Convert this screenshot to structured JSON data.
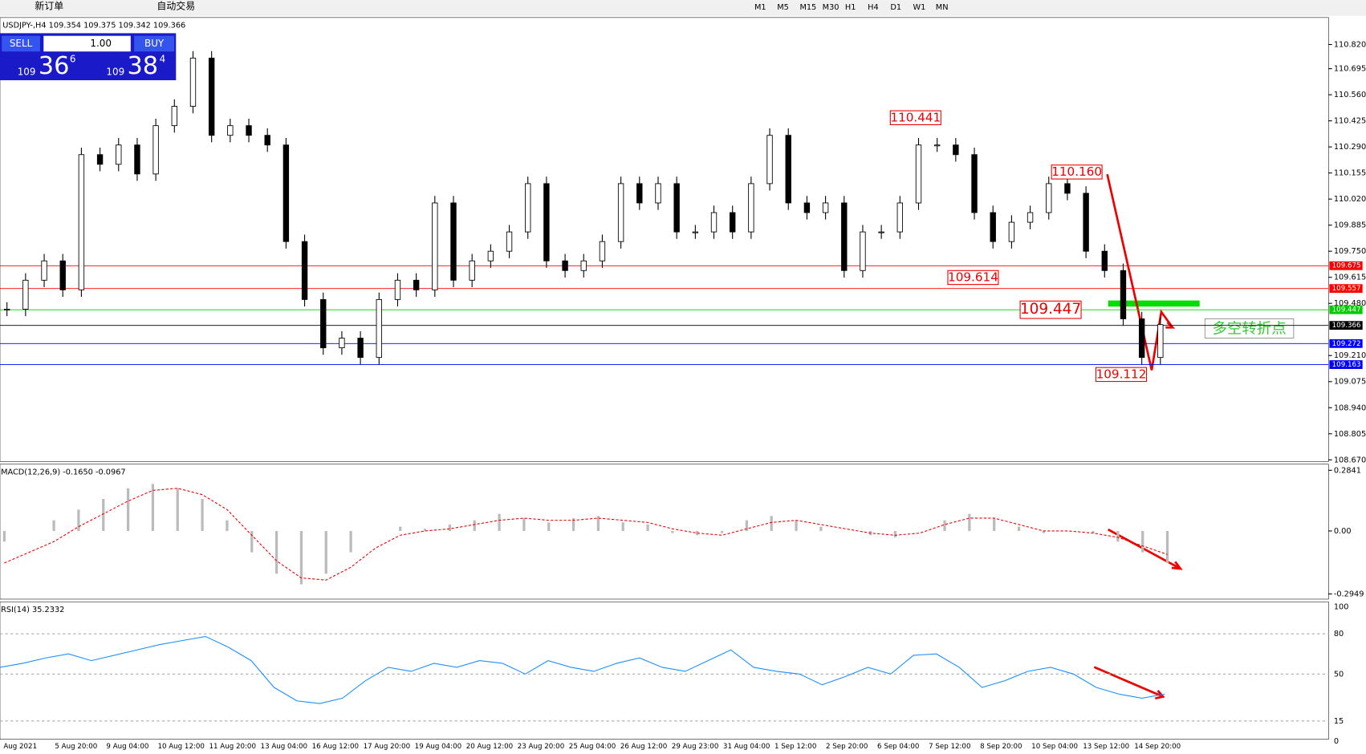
{
  "toolbar": {
    "buttons": [
      "新订单",
      "自动交易"
    ],
    "timeframes": [
      "M1",
      "M5",
      "M15",
      "M30",
      "H1",
      "H4",
      "D1",
      "W1",
      "MN"
    ]
  },
  "trade_panel": {
    "sell": "SELL",
    "buy": "BUY",
    "lot": "1.00",
    "bid": {
      "big": "109",
      "main": "36",
      "small": "6"
    },
    "ask": {
      "big": "109",
      "main": "38",
      "small": "4"
    }
  },
  "price_chart": {
    "header": "USDJPY-,H4  109.354 109.375 109.342 109.366",
    "ylim": [
      108.67,
      110.865
    ],
    "yticks": [
      {
        "value": 110.82,
        "label": "110.820"
      },
      {
        "value": 110.695,
        "label": "110.695"
      },
      {
        "value": 110.56,
        "label": "110.560"
      },
      {
        "value": 110.425,
        "label": "110.425"
      },
      {
        "value": 110.29,
        "label": "110.290"
      },
      {
        "value": 110.155,
        "label": "110.155"
      },
      {
        "value": 110.02,
        "label": "110.020"
      },
      {
        "value": 109.885,
        "label": "109.885"
      },
      {
        "value": 109.75,
        "label": "109.750"
      },
      {
        "value": 109.615,
        "label": "109.615"
      },
      {
        "value": 109.48,
        "label": "109.480"
      },
      {
        "value": 109.21,
        "label": "109.210"
      },
      {
        "value": 109.075,
        "label": "109.075"
      },
      {
        "value": 108.94,
        "label": "108.940"
      },
      {
        "value": 108.805,
        "label": "108.805"
      },
      {
        "value": 108.67,
        "label": "108.670"
      }
    ],
    "levels": [
      {
        "value": 109.675,
        "label": "109.675",
        "color": "#ff0000"
      },
      {
        "value": 109.557,
        "label": "109.557",
        "color": "#ff0000"
      },
      {
        "value": 109.447,
        "label": "109.447",
        "color": "#00cc00"
      },
      {
        "value": 109.366,
        "label": "109.366",
        "color": "#000000"
      },
      {
        "value": 109.272,
        "label": "109.272",
        "color": "#0000ff"
      },
      {
        "value": 109.163,
        "label": "109.163",
        "color": "#0000ff"
      }
    ],
    "annotations": [
      {
        "value": 110.441,
        "label": "110.441"
      },
      {
        "value": 110.16,
        "label": "110.160"
      },
      {
        "value": 109.614,
        "label": "109.614"
      },
      {
        "value": 109.447,
        "label": "109.447"
      },
      {
        "value": 109.112,
        "label": "109.112"
      }
    ],
    "signal_text": "多空转折点",
    "closes": [
      109.45,
      109.6,
      109.7,
      109.55,
      110.25,
      110.2,
      110.3,
      110.15,
      110.4,
      110.5,
      110.75,
      110.35,
      110.4,
      110.35,
      110.3,
      109.8,
      109.5,
      109.25,
      109.3,
      109.2,
      109.5,
      109.6,
      109.55,
      110.0,
      109.6,
      109.7,
      109.75,
      109.85,
      110.1,
      109.7,
      109.65,
      109.7,
      109.8,
      110.1,
      110.0,
      110.1,
      109.85,
      109.85,
      109.95,
      109.85,
      110.1,
      110.35,
      110.0,
      109.95,
      110.0,
      109.65,
      109.85,
      109.85,
      110.0,
      110.3,
      110.3,
      110.25,
      109.95,
      109.8,
      109.9,
      109.95,
      110.1,
      110.05,
      109.75,
      109.65,
      109.4,
      109.2,
      109.37
    ],
    "x_labels": [
      "Aug 2021",
      "5 Aug 20:00",
      "9 Aug 04:00",
      "10 Aug 12:00",
      "11 Aug 20:00",
      "13 Aug 04:00",
      "16 Aug 12:00",
      "17 Aug 20:00",
      "19 Aug 04:00",
      "20 Aug 12:00",
      "23 Aug 20:00",
      "25 Aug 04:00",
      "26 Aug 12:00",
      "29 Aug 23:00",
      "31 Aug 04:00",
      "1 Sep 12:00",
      "2 Sep 20:00",
      "6 Sep 04:00",
      "7 Sep 12:00",
      "8 Sep 20:00",
      "10 Sep 04:00",
      "13 Sep 12:00",
      "14 Sep 20:00"
    ]
  },
  "macd": {
    "label": "MACD(12,26,9) -0.1650 -0.0967",
    "ylim": [
      -0.2949,
      0.2841
    ],
    "yticks": [
      {
        "value": 0.2841,
        "label": "0.2841"
      },
      {
        "value": 0,
        "label": "0.00"
      },
      {
        "value": -0.2949,
        "label": "-0.2949"
      }
    ],
    "histogram": [
      -0.05,
      0,
      0.05,
      0.1,
      0.15,
      0.2,
      0.22,
      0.2,
      0.15,
      0.05,
      -0.1,
      -0.2,
      -0.25,
      -0.2,
      -0.1,
      0,
      0.02,
      0.01,
      0.03,
      0.05,
      0.08,
      0.06,
      0.04,
      0.06,
      0.07,
      0.04,
      0.03,
      -0.01,
      -0.02,
      -0.01,
      0.05,
      0.07,
      0.05,
      0.02,
      0,
      -0.02,
      -0.03,
      0,
      0.05,
      0.08,
      0.06,
      0.02,
      -0.01,
      0,
      -0.01,
      -0.05,
      -0.1,
      -0.15
    ],
    "signal": [
      -0.15,
      -0.1,
      -0.05,
      0.02,
      0.08,
      0.14,
      0.19,
      0.2,
      0.17,
      0.1,
      -0.02,
      -0.14,
      -0.22,
      -0.23,
      -0.17,
      -0.08,
      -0.02,
      0,
      0.01,
      0.03,
      0.05,
      0.06,
      0.05,
      0.05,
      0.06,
      0.05,
      0.04,
      0.01,
      -0.01,
      -0.02,
      0.01,
      0.04,
      0.05,
      0.03,
      0.01,
      -0.01,
      -0.02,
      -0.01,
      0.03,
      0.06,
      0.06,
      0.03,
      0,
      0,
      -0.01,
      -0.03,
      -0.07,
      -0.11
    ]
  },
  "rsi": {
    "label": "RSI(14) 35.2332",
    "ylim": [
      0,
      100
    ],
    "yticks": [
      100,
      80,
      50,
      15,
      0
    ],
    "values": [
      55,
      58,
      62,
      65,
      60,
      64,
      68,
      72,
      75,
      78,
      70,
      60,
      40,
      30,
      28,
      32,
      45,
      55,
      52,
      58,
      55,
      60,
      58,
      50,
      60,
      55,
      52,
      58,
      62,
      55,
      52,
      60,
      68,
      55,
      52,
      50,
      42,
      48,
      55,
      50,
      64,
      65,
      55,
      40,
      45,
      52,
      55,
      50,
      40,
      35,
      32,
      35
    ]
  }
}
